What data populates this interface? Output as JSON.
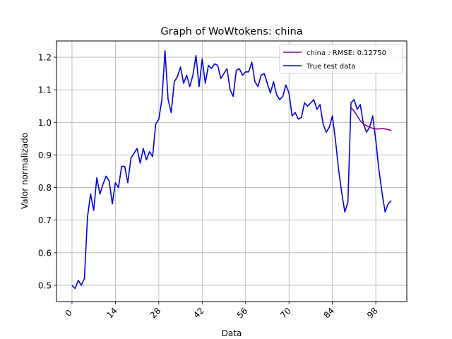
{
  "chart_data": {
    "type": "line",
    "title": "Graph of WoWtokens: china",
    "xlabel": "Data",
    "ylabel": "Valor normalizado",
    "xlim": [
      -5,
      108
    ],
    "ylim": [
      0.45,
      1.25
    ],
    "xticks": [
      0,
      14,
      28,
      42,
      56,
      70,
      84,
      98
    ],
    "yticks": [
      0.5,
      0.6,
      0.7,
      0.8,
      0.9,
      1.0,
      1.1,
      1.2
    ],
    "grid": true,
    "legend_position": "top-right",
    "series": [
      {
        "name": "china : RMSE: 0.12750",
        "color": "#800080",
        "x": [
          90,
          91,
          92,
          93,
          94,
          95,
          96,
          97,
          98,
          99,
          100,
          101,
          102,
          103
        ],
        "y": [
          1.045,
          1.035,
          1.02,
          1.005,
          0.995,
          0.99,
          0.985,
          0.982,
          0.98,
          0.98,
          0.981,
          0.98,
          0.978,
          0.975
        ]
      },
      {
        "name": "True test data",
        "color": "#0000dd",
        "x": [
          0,
          1,
          2,
          3,
          4,
          5,
          6,
          7,
          8,
          9,
          10,
          11,
          12,
          13,
          14,
          15,
          16,
          17,
          18,
          19,
          20,
          21,
          22,
          23,
          24,
          25,
          26,
          27,
          28,
          29,
          30,
          31,
          32,
          33,
          34,
          35,
          36,
          37,
          38,
          39,
          40,
          41,
          42,
          43,
          44,
          45,
          46,
          47,
          48,
          49,
          50,
          51,
          52,
          53,
          54,
          55,
          56,
          57,
          58,
          59,
          60,
          61,
          62,
          63,
          64,
          65,
          66,
          67,
          68,
          69,
          70,
          71,
          72,
          73,
          74,
          75,
          76,
          77,
          78,
          79,
          80,
          81,
          82,
          83,
          84,
          85,
          86,
          87,
          88,
          89,
          90,
          91,
          92,
          93,
          94,
          95,
          96,
          97,
          98,
          99,
          100,
          101,
          102,
          103
        ],
        "y": [
          0.5,
          0.49,
          0.515,
          0.5,
          0.52,
          0.71,
          0.78,
          0.73,
          0.83,
          0.78,
          0.81,
          0.835,
          0.82,
          0.75,
          0.815,
          0.8,
          0.865,
          0.865,
          0.815,
          0.89,
          0.905,
          0.92,
          0.875,
          0.92,
          0.885,
          0.91,
          0.895,
          0.995,
          1.01,
          1.07,
          1.22,
          1.07,
          1.03,
          1.125,
          1.14,
          1.17,
          1.12,
          1.145,
          1.11,
          1.145,
          1.205,
          1.11,
          1.195,
          1.12,
          1.175,
          1.165,
          1.18,
          1.175,
          1.135,
          1.15,
          1.165,
          1.1,
          1.08,
          1.16,
          1.165,
          1.145,
          1.155,
          1.155,
          1.185,
          1.125,
          1.11,
          1.145,
          1.15,
          1.12,
          1.09,
          1.125,
          1.085,
          1.07,
          1.08,
          1.115,
          1.09,
          1.02,
          1.03,
          1.01,
          1.015,
          1.06,
          1.05,
          1.06,
          1.07,
          1.04,
          1.055,
          0.995,
          0.97,
          0.985,
          1.02,
          0.945,
          0.855,
          0.785,
          0.725,
          0.755,
          1.06,
          1.07,
          1.04,
          1.055,
          0.995,
          0.97,
          0.985,
          1.02,
          0.945,
          0.855,
          0.785,
          0.725,
          0.75,
          0.76
        ]
      }
    ]
  }
}
